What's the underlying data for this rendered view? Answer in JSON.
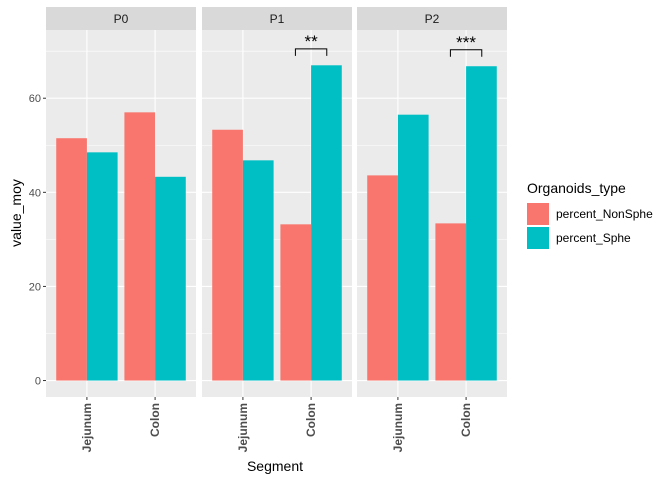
{
  "chart_data": {
    "type": "bar",
    "xlabel": "Segment",
    "ylabel": "value_moy",
    "ylim": [
      -3.5,
      74.5
    ],
    "yticks": [
      0,
      20,
      40,
      60
    ],
    "grid": true,
    "legend": {
      "title": "Organoids_type",
      "position": "right",
      "entries": [
        "percent_NonSphe",
        "percent_Sphe"
      ]
    },
    "facets": [
      {
        "label": "P0",
        "categories": [
          "Jejunum",
          "Colon"
        ],
        "series": [
          {
            "name": "percent_NonSphe",
            "values": [
              51.5,
              57.0
            ]
          },
          {
            "name": "percent_Sphe",
            "values": [
              48.5,
              43.3
            ]
          }
        ],
        "annotation": null
      },
      {
        "label": "P1",
        "categories": [
          "Jejunum",
          "Colon"
        ],
        "series": [
          {
            "name": "percent_NonSphe",
            "values": [
              53.3,
              33.2
            ]
          },
          {
            "name": "percent_Sphe",
            "values": [
              46.8,
              67.0
            ]
          }
        ],
        "annotation": {
          "category": "Colon",
          "text": "**"
        }
      },
      {
        "label": "P2",
        "categories": [
          "Jejunum",
          "Colon"
        ],
        "series": [
          {
            "name": "percent_NonSphe",
            "values": [
              43.6,
              33.4
            ]
          },
          {
            "name": "percent_Sphe",
            "values": [
              56.5,
              66.8
            ]
          }
        ],
        "annotation": {
          "category": "Colon",
          "text": "***"
        }
      }
    ],
    "colors": {
      "percent_NonSphe": "#F8766D",
      "percent_Sphe": "#00BFC4",
      "panel_bg": "#EBEBEB",
      "strip_bg": "#D9D9D9",
      "grid_major": "#FFFFFF",
      "text": "#1A1A1A",
      "tick_text": "#4D4D4D"
    }
  }
}
